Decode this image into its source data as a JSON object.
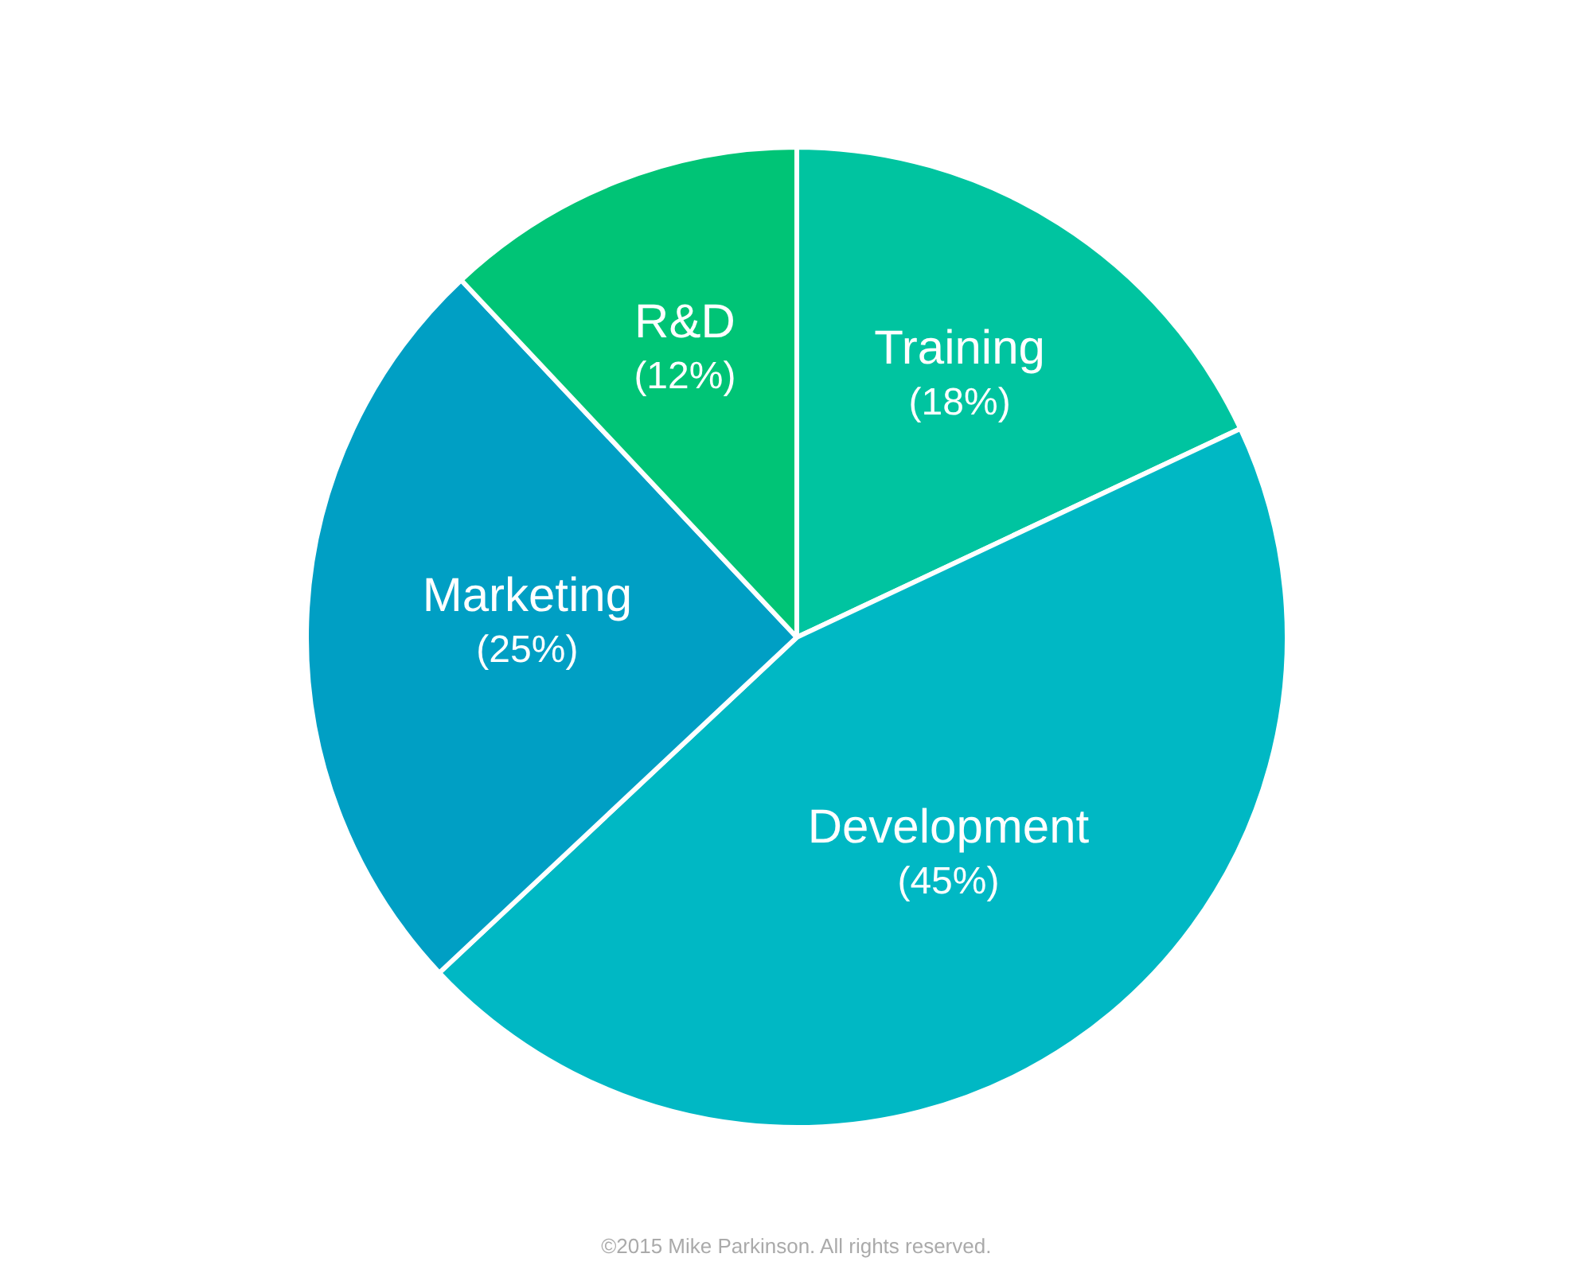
{
  "chart_data": {
    "type": "pie",
    "categories": [
      "Training",
      "Development",
      "Marketing",
      "R&D"
    ],
    "values": [
      18,
      45,
      25,
      12
    ],
    "colors": [
      "#00c4a0",
      "#00b8c4",
      "#009fc4",
      "#00c476"
    ],
    "value_labels": [
      "(18%)",
      "(45%)",
      "(25%)",
      "(12%)"
    ],
    "annotations": [
      "©2015 Mike Parkinson. All rights reserved."
    ]
  }
}
